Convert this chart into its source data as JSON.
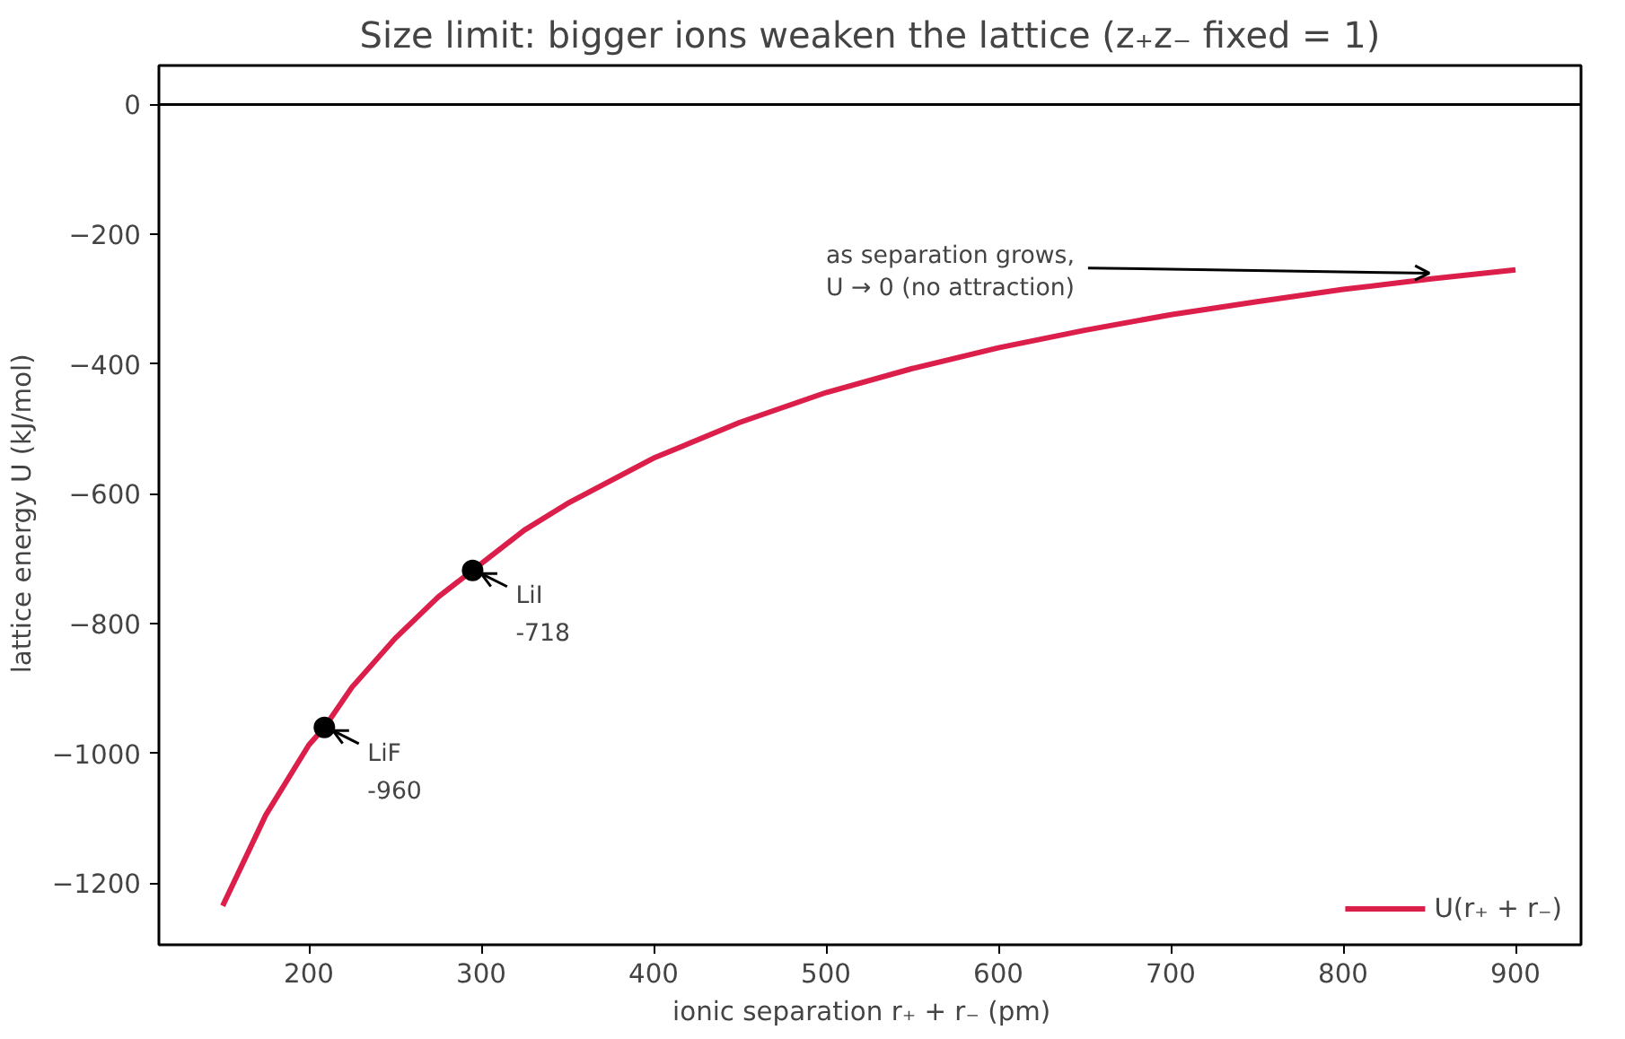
{
  "chart_data": {
    "type": "line",
    "title": "Size limit: bigger ions weaken the lattice (z₊z₋ fixed = 1)",
    "xlabel": "ionic separation  r₊ + r₋  (pm)",
    "ylabel": "lattice energy  U  (kJ/mol)",
    "xlim": [
      113,
      938
    ],
    "xticks": [
      200,
      300,
      400,
      500,
      600,
      700,
      800,
      900
    ],
    "ylim": [
      -1295,
      60
    ],
    "yticks": [
      {
        "value": -1200,
        "label": "−1200"
      },
      {
        "value": -1000,
        "label": "−1000"
      },
      {
        "value": -800,
        "label": "−800"
      },
      {
        "value": -600,
        "label": "−600"
      },
      {
        "value": -400,
        "label": "−400"
      },
      {
        "value": -200,
        "label": "−200"
      },
      0
    ],
    "grid": false,
    "legend": "bottom right",
    "line_style": "solid",
    "series": [
      {
        "name": "U(r₊ + r₋)",
        "color": "#dc1e4a",
        "marker": "none",
        "x": [
          150,
          175,
          200,
          209,
          225,
          250,
          275,
          295,
          325,
          350,
          400,
          450,
          500,
          550,
          600,
          650,
          700,
          750,
          800,
          850,
          900
        ],
        "values": [
          -1235,
          -1095,
          -987,
          -960,
          -898,
          -823,
          -759,
          -718,
          -656,
          -615,
          -545,
          -490,
          -444,
          -407,
          -375,
          -348,
          -324,
          -304,
          -285,
          -269,
          -255
        ]
      },
      {
        "type": "scatter",
        "color": "#000000",
        "marker": "circle",
        "x": [
          209,
          295
        ],
        "values": [
          -960,
          -718
        ]
      }
    ],
    "ref_lines": [
      {
        "axis": "y",
        "value": 0,
        "color": "#000000"
      }
    ],
    "annotations": [
      {
        "text": "LiF\n-960",
        "x": 209,
        "y": -960
      },
      {
        "text": "LiI\n-718",
        "x": 295,
        "y": -718
      },
      {
        "text": "as separation grows,\nU → 0  (no attraction)",
        "x": 850,
        "y": -260
      }
    ]
  }
}
